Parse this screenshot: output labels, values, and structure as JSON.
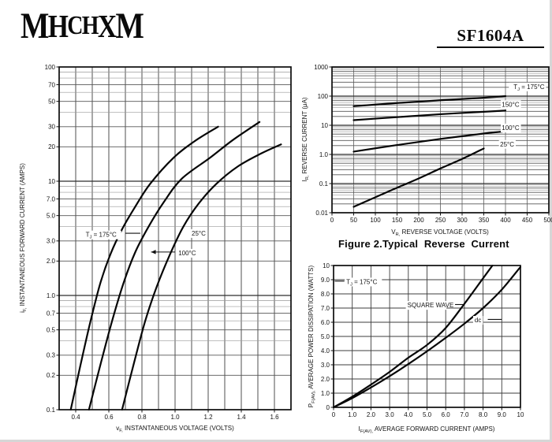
{
  "page": {
    "background": "#ffffff",
    "ink": "#111111"
  },
  "header": {
    "logo_text": "MHCHXM",
    "part_number": "SF1604A"
  },
  "figure2_caption": "Figure 2.Typical  Reverse  Current",
  "chart_data": [
    {
      "id": "forward-voltage",
      "type": "line",
      "x_scale": "linear",
      "y_scale": "log",
      "xlim": [
        0.3,
        1.7
      ],
      "ylim": [
        0.1,
        100
      ],
      "x_grid_step": 0.1,
      "xlabel": "v_{F,} INSTANTANEOUS VOLTAGE (VOLTS)",
      "ylabel": "i_{F,} INSTANTANEOUS FORWARD CURRENT (AMPS)",
      "x_ticks": [
        [
          0.4,
          "0.4"
        ],
        [
          0.6,
          "0.6"
        ],
        [
          0.8,
          "0.8"
        ],
        [
          1.0,
          "1.0"
        ],
        [
          1.2,
          "1.2"
        ],
        [
          1.4,
          "1.4"
        ],
        [
          1.6,
          "1.6"
        ]
      ],
      "y_ticks": [
        [
          100,
          "100"
        ],
        [
          70,
          "70"
        ],
        [
          50,
          "50"
        ],
        [
          30,
          "30"
        ],
        [
          20,
          "20"
        ],
        [
          10,
          "10"
        ],
        [
          7,
          "7.0"
        ],
        [
          5,
          "5.0"
        ],
        [
          3,
          "3.0"
        ],
        [
          2,
          "2.0"
        ],
        [
          1,
          "1.0"
        ],
        [
          0.7,
          "0.7"
        ],
        [
          0.5,
          "0.5"
        ],
        [
          0.3,
          "0.3"
        ],
        [
          0.2,
          "0.2"
        ],
        [
          0.1,
          "0.1"
        ]
      ],
      "series": [
        {
          "name": "TJ = 175°C",
          "points": [
            [
              0.37,
              0.1
            ],
            [
              0.43,
              0.25
            ],
            [
              0.49,
              0.6
            ],
            [
              0.55,
              1.3
            ],
            [
              0.61,
              2.3
            ],
            [
              0.68,
              3.8
            ],
            [
              0.76,
              6.0
            ],
            [
              0.85,
              9.5
            ],
            [
              0.99,
              16
            ],
            [
              1.12,
              22.5
            ],
            [
              1.26,
              30
            ]
          ]
        },
        {
          "name": "100°C",
          "points": [
            [
              0.48,
              0.1
            ],
            [
              0.55,
              0.25
            ],
            [
              0.62,
              0.6
            ],
            [
              0.69,
              1.3
            ],
            [
              0.76,
              2.4
            ],
            [
              0.84,
              4.0
            ],
            [
              0.93,
              6.5
            ],
            [
              1.04,
              10.5
            ],
            [
              1.21,
              16
            ],
            [
              1.35,
              23
            ],
            [
              1.51,
              33
            ]
          ]
        },
        {
          "name": "25°C",
          "points": [
            [
              0.68,
              0.1
            ],
            [
              0.75,
              0.25
            ],
            [
              0.82,
              0.6
            ],
            [
              0.89,
              1.2
            ],
            [
              0.97,
              2.3
            ],
            [
              1.05,
              4.0
            ],
            [
              1.14,
              6.3
            ],
            [
              1.25,
              9.5
            ],
            [
              1.38,
              13.5
            ],
            [
              1.52,
              17.5
            ],
            [
              1.64,
              21
            ]
          ]
        }
      ],
      "annotations": [
        {
          "text": "T_{J} = 175°C",
          "x": 0.46,
          "y": 3.4,
          "anchor": "start",
          "line": [
            0.7,
            3.5,
            0.79,
            3.5
          ]
        },
        {
          "text": "25°C",
          "x": 1.1,
          "y": 3.5,
          "anchor": "start"
        },
        {
          "text": "100°C",
          "x": 1.02,
          "y": 2.35,
          "anchor": "start",
          "line": [
            1.0,
            2.4,
            0.855,
            2.4
          ],
          "arrow": true
        }
      ]
    },
    {
      "id": "reverse-current",
      "type": "line",
      "x_scale": "linear",
      "y_scale": "log",
      "xlim": [
        0,
        500
      ],
      "ylim": [
        0.01,
        1000
      ],
      "x_grid_step": 50,
      "xlabel": "V_{R,} REVERSE VOLTAGE (VOLTS)",
      "ylabel": "I_{R,} REVERSE CURRENT (μA)",
      "x_ticks": [
        [
          0,
          "0"
        ],
        [
          50,
          "50"
        ],
        [
          100,
          "100"
        ],
        [
          150,
          "150"
        ],
        [
          200,
          "200"
        ],
        [
          250,
          "250"
        ],
        [
          300,
          "300"
        ],
        [
          350,
          "350"
        ],
        [
          400,
          "400"
        ],
        [
          450,
          "450"
        ],
        [
          500,
          "500"
        ]
      ],
      "y_ticks": [
        [
          1000,
          "1000"
        ],
        [
          100,
          "100"
        ],
        [
          10,
          "10"
        ],
        [
          1,
          "1.0"
        ],
        [
          0.1,
          "0.1"
        ],
        [
          0.01,
          "0.01"
        ]
      ],
      "series": [
        {
          "name": "TJ = 175°C",
          "points": [
            [
              50,
              45
            ],
            [
              150,
              58
            ],
            [
              250,
              72
            ],
            [
              350,
              88
            ],
            [
              400,
              100
            ]
          ]
        },
        {
          "name": "150°C",
          "points": [
            [
              50,
              15
            ],
            [
              150,
              19
            ],
            [
              250,
              24
            ],
            [
              350,
              29
            ],
            [
              400,
              32
            ]
          ]
        },
        {
          "name": "100°C",
          "points": [
            [
              50,
              1.25
            ],
            [
              150,
              2.1
            ],
            [
              250,
              3.4
            ],
            [
              350,
              5.2
            ],
            [
              400,
              6.2
            ]
          ]
        },
        {
          "name": "25°C",
          "points": [
            [
              50,
              0.016
            ],
            [
              100,
              0.034
            ],
            [
              150,
              0.072
            ],
            [
              200,
              0.15
            ],
            [
              250,
              0.33
            ],
            [
              300,
              0.7
            ],
            [
              350,
              1.6
            ]
          ]
        }
      ],
      "annotations": [
        {
          "text": "T_{J} = 175°C",
          "x": 490,
          "y": 210,
          "anchor": "end"
        },
        {
          "text": "150°C",
          "x": 432,
          "y": 52,
          "anchor": "end"
        },
        {
          "text": "100°C",
          "x": 432,
          "y": 8.2,
          "anchor": "end"
        },
        {
          "text": "25°C",
          "x": 420,
          "y": 2.25,
          "anchor": "end"
        }
      ]
    },
    {
      "id": "power-dissipation",
      "type": "line",
      "x_scale": "linear",
      "y_scale": "linear",
      "xlim": [
        0,
        10
      ],
      "ylim": [
        0,
        10
      ],
      "x_grid_step": 1,
      "y_grid_step": 1,
      "xlabel": "I_{F(AV),} AVERAGE FORWARD CURRENT (AMPS)",
      "ylabel": "P_{F(AV),} AVERAGE POWER DISSIPATION (WATTS)",
      "x_ticks": [
        [
          0,
          "0"
        ],
        [
          1,
          "1.0"
        ],
        [
          2,
          "2.0"
        ],
        [
          3,
          "3.0"
        ],
        [
          4,
          "4.0"
        ],
        [
          5,
          "5.0"
        ],
        [
          6,
          "6.0"
        ],
        [
          7,
          "7.0"
        ],
        [
          8,
          "8.0"
        ],
        [
          9,
          "9.0"
        ],
        [
          10,
          "10"
        ]
      ],
      "y_ticks": [
        [
          10,
          "10"
        ],
        [
          9,
          "9.0"
        ],
        [
          8,
          "8.0"
        ],
        [
          7,
          "7.0"
        ],
        [
          6,
          "6.0"
        ],
        [
          5,
          "5.0"
        ],
        [
          4,
          "4.0"
        ],
        [
          3,
          "3.0"
        ],
        [
          2,
          "2.0"
        ],
        [
          1,
          "1.0"
        ],
        [
          0,
          "0"
        ]
      ],
      "series": [
        {
          "name": "SQUARE WAVE",
          "points": [
            [
              0,
              0
            ],
            [
              1,
              0.75
            ],
            [
              2,
              1.6
            ],
            [
              3,
              2.5
            ],
            [
              4,
              3.5
            ],
            [
              5,
              4.4
            ],
            [
              6,
              5.6
            ],
            [
              7,
              7.3
            ],
            [
              8,
              9.1
            ],
            [
              8.5,
              10
            ]
          ]
        },
        {
          "name": "dc",
          "points": [
            [
              0,
              0
            ],
            [
              1,
              0.65
            ],
            [
              2,
              1.4
            ],
            [
              3,
              2.2
            ],
            [
              4,
              3.05
            ],
            [
              5,
              3.95
            ],
            [
              6,
              4.9
            ],
            [
              7,
              5.9
            ],
            [
              8,
              7.0
            ],
            [
              9,
              8.3
            ],
            [
              10,
              9.9
            ]
          ]
        }
      ],
      "annotations": [
        {
          "text": "T_{J} = 175°C",
          "x": 0.68,
          "y": 8.85,
          "anchor": "start",
          "line": [
            0.06,
            8.9,
            0.58,
            8.9
          ]
        },
        {
          "text": "SQUARE WAVE",
          "x": 3.95,
          "y": 7.2,
          "anchor": "start",
          "line": [
            6.5,
            7.25,
            6.95,
            7.25
          ]
        },
        {
          "text": "dc",
          "x": 7.55,
          "y": 6.15,
          "anchor": "start",
          "line": [
            8.25,
            6.2,
            9.0,
            6.2
          ]
        }
      ]
    }
  ]
}
